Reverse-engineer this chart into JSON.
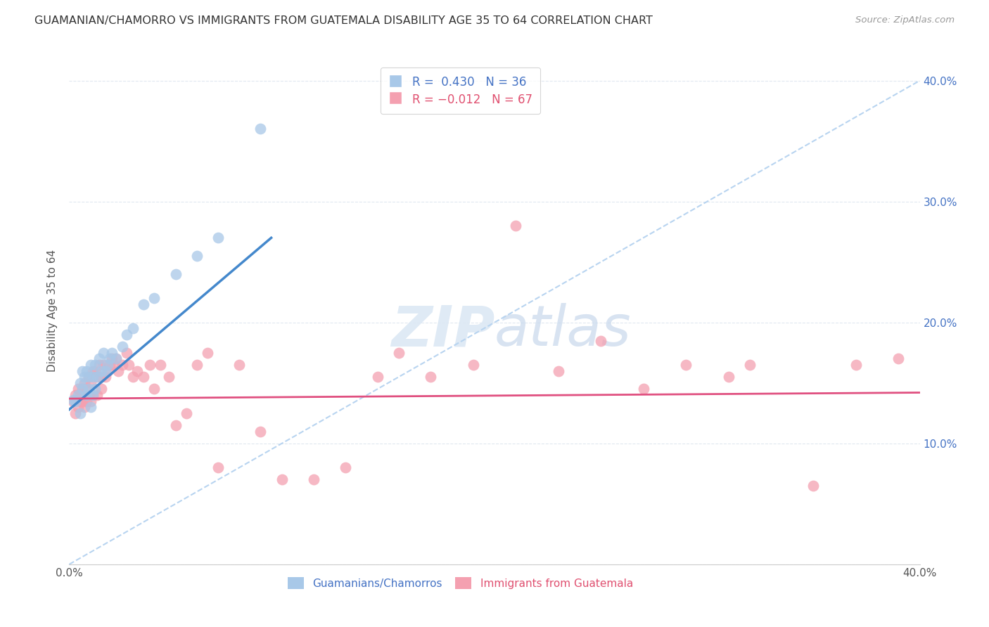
{
  "title": "GUAMANIAN/CHAMORRO VS IMMIGRANTS FROM GUATEMALA DISABILITY AGE 35 TO 64 CORRELATION CHART",
  "source": "Source: ZipAtlas.com",
  "ylabel": "Disability Age 35 to 64",
  "xlim": [
    0.0,
    0.4
  ],
  "ylim": [
    -0.02,
    0.42
  ],
  "plot_ylim": [
    0.0,
    0.42
  ],
  "xticks": [
    0.0,
    0.1,
    0.2,
    0.3,
    0.4
  ],
  "xtick_labels": [
    "0.0%",
    "",
    "",
    "",
    "40.0%"
  ],
  "yticks": [
    0.0,
    0.1,
    0.2,
    0.3,
    0.4
  ],
  "ytick_labels_right": [
    "",
    "10.0%",
    "20.0%",
    "30.0%",
    "40.0%"
  ],
  "blue_R": 0.43,
  "blue_N": 36,
  "pink_R": -0.012,
  "pink_N": 67,
  "blue_color": "#a8c8e8",
  "pink_color": "#f4a0b0",
  "blue_line_color": "#4488cc",
  "pink_line_color": "#e05080",
  "dash_line_color": "#b8d4f0",
  "background_color": "#ffffff",
  "grid_color": "#e0e8f0",
  "blue_line_x0": 0.0,
  "blue_line_y0": 0.128,
  "blue_line_x1": 0.095,
  "blue_line_y1": 0.27,
  "pink_line_x0": 0.0,
  "pink_line_y0": 0.137,
  "pink_line_x1": 0.4,
  "pink_line_y1": 0.142,
  "blue_scatter_x": [
    0.002,
    0.003,
    0.004,
    0.005,
    0.005,
    0.006,
    0.006,
    0.007,
    0.008,
    0.008,
    0.009,
    0.009,
    0.01,
    0.01,
    0.011,
    0.011,
    0.012,
    0.012,
    0.013,
    0.014,
    0.015,
    0.016,
    0.017,
    0.018,
    0.019,
    0.02,
    0.022,
    0.025,
    0.027,
    0.03,
    0.035,
    0.04,
    0.05,
    0.06,
    0.07,
    0.09
  ],
  "blue_scatter_y": [
    0.136,
    0.135,
    0.14,
    0.15,
    0.125,
    0.16,
    0.145,
    0.155,
    0.16,
    0.14,
    0.155,
    0.145,
    0.165,
    0.13,
    0.155,
    0.14,
    0.165,
    0.145,
    0.155,
    0.17,
    0.16,
    0.175,
    0.16,
    0.165,
    0.17,
    0.175,
    0.17,
    0.18,
    0.19,
    0.195,
    0.215,
    0.22,
    0.24,
    0.255,
    0.27,
    0.36
  ],
  "pink_scatter_x": [
    0.002,
    0.003,
    0.003,
    0.004,
    0.004,
    0.005,
    0.005,
    0.006,
    0.006,
    0.007,
    0.007,
    0.008,
    0.008,
    0.009,
    0.009,
    0.01,
    0.01,
    0.011,
    0.011,
    0.012,
    0.013,
    0.013,
    0.014,
    0.015,
    0.015,
    0.016,
    0.017,
    0.018,
    0.019,
    0.02,
    0.021,
    0.022,
    0.023,
    0.025,
    0.027,
    0.028,
    0.03,
    0.032,
    0.035,
    0.038,
    0.04,
    0.043,
    0.047,
    0.05,
    0.055,
    0.06,
    0.065,
    0.07,
    0.08,
    0.09,
    0.1,
    0.115,
    0.13,
    0.145,
    0.155,
    0.17,
    0.19,
    0.21,
    0.23,
    0.25,
    0.27,
    0.29,
    0.31,
    0.32,
    0.35,
    0.37,
    0.39
  ],
  "pink_scatter_y": [
    0.135,
    0.14,
    0.125,
    0.13,
    0.145,
    0.14,
    0.135,
    0.145,
    0.135,
    0.15,
    0.13,
    0.145,
    0.135,
    0.155,
    0.14,
    0.15,
    0.135,
    0.16,
    0.14,
    0.16,
    0.155,
    0.14,
    0.165,
    0.155,
    0.145,
    0.165,
    0.155,
    0.16,
    0.165,
    0.17,
    0.165,
    0.17,
    0.16,
    0.165,
    0.175,
    0.165,
    0.155,
    0.16,
    0.155,
    0.165,
    0.145,
    0.165,
    0.155,
    0.115,
    0.125,
    0.165,
    0.175,
    0.08,
    0.165,
    0.11,
    0.07,
    0.07,
    0.08,
    0.155,
    0.175,
    0.155,
    0.165,
    0.28,
    0.16,
    0.185,
    0.145,
    0.165,
    0.155,
    0.165,
    0.065,
    0.165,
    0.17
  ]
}
